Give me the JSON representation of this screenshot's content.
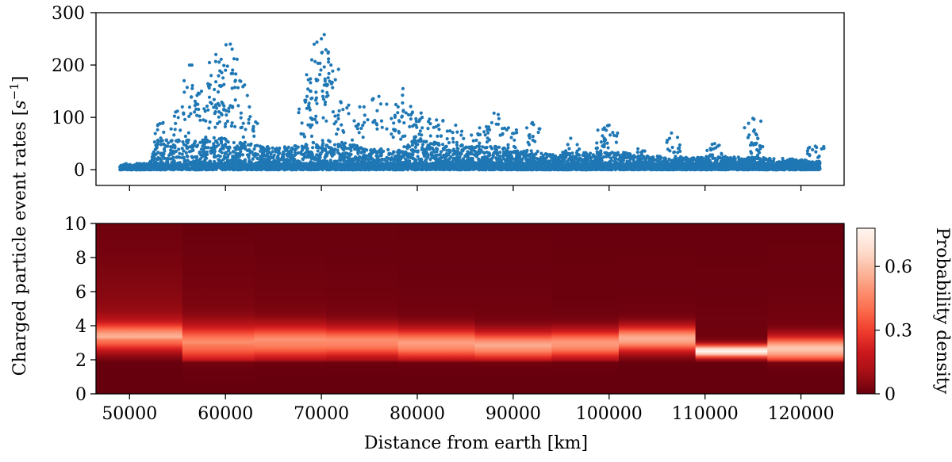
{
  "chart_data": [
    {
      "type": "scatter",
      "panel": "top",
      "title": "",
      "xlabel": "",
      "ylabel": "Charged particle event rates [s⁻¹]",
      "ylabel_parts": [
        "Charged particle event rates ",
        "[",
        "s",
        "−1",
        "]"
      ],
      "xlim": [
        46500,
        124500
      ],
      "ylim": [
        -30,
        300
      ],
      "yticks": [
        0,
        100,
        200,
        300
      ],
      "ytick_labels": [
        "0",
        "100",
        "200",
        "300"
      ],
      "xticks": [
        50000,
        60000,
        70000,
        80000,
        90000,
        100000,
        110000,
        120000
      ],
      "color": "#1f77b4",
      "grid": false,
      "x_range": [
        49000,
        122000
      ],
      "baseline_band": [
        0,
        12
      ],
      "envelope": {
        "x": [
          49000,
          52000,
          53000,
          54000,
          56000,
          58000,
          60000,
          62000,
          65000,
          68000,
          70000,
          72000,
          75000,
          78000,
          80000,
          83000,
          86000,
          90000,
          94000,
          98000,
          101000,
          103000,
          106000,
          110000,
          113000,
          116000,
          119000,
          122000
        ],
        "y": [
          8,
          10,
          60,
          55,
          55,
          60,
          58,
          50,
          40,
          45,
          55,
          50,
          40,
          35,
          60,
          45,
          45,
          40,
          30,
          32,
          35,
          25,
          25,
          22,
          25,
          22,
          20,
          15
        ]
      },
      "bursts": [
        {
          "x": 53500,
          "y": 90
        },
        {
          "x": 55500,
          "y": 120
        },
        {
          "x": 56500,
          "y": 200
        },
        {
          "x": 57500,
          "y": 150
        },
        {
          "x": 58500,
          "y": 180
        },
        {
          "x": 59000,
          "y": 220
        },
        {
          "x": 59500,
          "y": 160
        },
        {
          "x": 60000,
          "y": 190
        },
        {
          "x": 60500,
          "y": 240
        },
        {
          "x": 61500,
          "y": 170
        },
        {
          "x": 62500,
          "y": 120
        },
        {
          "x": 68500,
          "y": 140
        },
        {
          "x": 69000,
          "y": 210
        },
        {
          "x": 69500,
          "y": 170
        },
        {
          "x": 70000,
          "y": 250
        },
        {
          "x": 70300,
          "y": 258
        },
        {
          "x": 71000,
          "y": 200
        },
        {
          "x": 72000,
          "y": 130
        },
        {
          "x": 74000,
          "y": 120
        },
        {
          "x": 76000,
          "y": 140
        },
        {
          "x": 78000,
          "y": 120
        },
        {
          "x": 78500,
          "y": 155
        },
        {
          "x": 79500,
          "y": 110
        },
        {
          "x": 80500,
          "y": 100
        },
        {
          "x": 82000,
          "y": 95
        },
        {
          "x": 84000,
          "y": 85
        },
        {
          "x": 86500,
          "y": 80
        },
        {
          "x": 88000,
          "y": 108
        },
        {
          "x": 89500,
          "y": 80
        },
        {
          "x": 92000,
          "y": 90
        },
        {
          "x": 96000,
          "y": 60
        },
        {
          "x": 99500,
          "y": 80
        },
        {
          "x": 100000,
          "y": 85
        },
        {
          "x": 103000,
          "y": 40
        },
        {
          "x": 106500,
          "y": 70
        },
        {
          "x": 111000,
          "y": 50
        },
        {
          "x": 115000,
          "y": 98
        },
        {
          "x": 115500,
          "y": 60
        },
        {
          "x": 121500,
          "y": 45
        }
      ]
    },
    {
      "type": "heatmap",
      "panel": "bottom",
      "title": "",
      "xlabel": "Distance from earth [km]",
      "ylabel": "",
      "xlim": [
        46500,
        124500
      ],
      "ylim": [
        0,
        10
      ],
      "xticks": [
        50000,
        60000,
        70000,
        80000,
        90000,
        100000,
        110000,
        120000
      ],
      "xtick_labels": [
        "50000",
        "60000",
        "70000",
        "80000",
        "90000",
        "100000",
        "110000",
        "120000"
      ],
      "yticks": [
        0,
        2,
        4,
        6,
        8,
        10
      ],
      "ytick_labels": [
        "0",
        "2",
        "4",
        "6",
        "8",
        "10"
      ],
      "colormap": "Reds_r",
      "colormap_stops": [
        "#67000d",
        "#a50f15",
        "#cb181d",
        "#ef3b2c",
        "#fb6a4a",
        "#fc9272",
        "#fcbba1",
        "#fee0d2",
        "#fff5f0"
      ],
      "colorbar": {
        "label": "Probability density",
        "range": [
          0,
          0.78
        ],
        "ticks": [
          0,
          0.3,
          0.6
        ],
        "tick_labels": [
          "0",
          "0.3",
          "0.6"
        ]
      },
      "columns": [
        {
          "x0": 46500,
          "x1": 55500,
          "mu": 3.3,
          "sigma": 0.55,
          "peak": 0.45,
          "tail": 0.12
        },
        {
          "x0": 55500,
          "x1": 63000,
          "mu": 2.9,
          "sigma": 0.7,
          "peak": 0.42,
          "tail": 0.07
        },
        {
          "x0": 63000,
          "x1": 70500,
          "mu": 3.0,
          "sigma": 0.65,
          "peak": 0.46,
          "tail": 0.05
        },
        {
          "x0": 70500,
          "x1": 78000,
          "mu": 3.0,
          "sigma": 0.6,
          "peak": 0.46,
          "tail": 0.04
        },
        {
          "x0": 78000,
          "x1": 86000,
          "mu": 2.9,
          "sigma": 0.6,
          "peak": 0.5,
          "tail": 0.03
        },
        {
          "x0": 86000,
          "x1": 94000,
          "mu": 2.8,
          "sigma": 0.55,
          "peak": 0.52,
          "tail": 0.03
        },
        {
          "x0": 94000,
          "x1": 101000,
          "mu": 2.9,
          "sigma": 0.55,
          "peak": 0.5,
          "tail": 0.02
        },
        {
          "x0": 101000,
          "x1": 109000,
          "mu": 3.2,
          "sigma": 0.5,
          "peak": 0.55,
          "tail": 0.02
        },
        {
          "x0": 109000,
          "x1": 116500,
          "mu": 2.5,
          "sigma": 0.25,
          "peak": 0.78,
          "tail": 0.02
        },
        {
          "x0": 116500,
          "x1": 124500,
          "mu": 2.6,
          "sigma": 0.5,
          "peak": 0.6,
          "tail": 0.03
        }
      ]
    }
  ]
}
